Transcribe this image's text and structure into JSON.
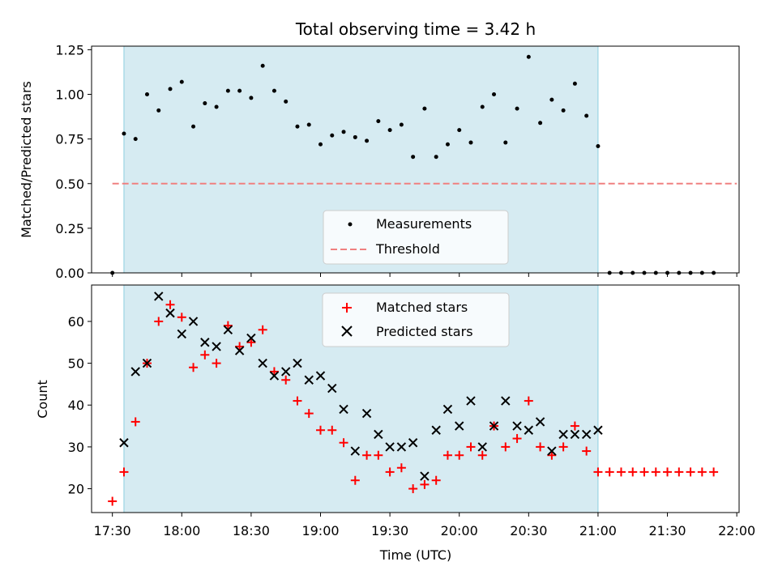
{
  "colors": {
    "shade": "#add8e6",
    "matched": "#ff0000",
    "predicted": "#000000",
    "measurement": "#000000",
    "threshold": "#f08080"
  },
  "chart_data": [
    {
      "type": "scatter",
      "title": "Total observing time = 3.42 h",
      "xlabel": "",
      "ylabel": "Matched/Predicted stars",
      "ylim": [
        0,
        1.27
      ],
      "yticks": [
        "0.00",
        "0.25",
        "0.50",
        "0.75",
        "1.00",
        "1.25"
      ],
      "grid": false,
      "legend": "bottom-center",
      "legend_entries": [
        "Measurements",
        "Threshold"
      ],
      "shaded_interval": [
        "17:35",
        "21:00"
      ],
      "threshold": {
        "value": 0.5,
        "x": [
          "17:30",
          "22:00"
        ]
      },
      "x": [
        "17:30",
        "17:35",
        "17:40",
        "17:45",
        "17:50",
        "17:55",
        "18:00",
        "18:05",
        "18:10",
        "18:15",
        "18:20",
        "18:25",
        "18:30",
        "18:35",
        "18:40",
        "18:45",
        "18:50",
        "18:55",
        "19:00",
        "19:05",
        "19:10",
        "19:15",
        "19:20",
        "19:25",
        "19:30",
        "19:35",
        "19:40",
        "19:45",
        "19:50",
        "19:55",
        "20:00",
        "20:05",
        "20:10",
        "20:15",
        "20:20",
        "20:25",
        "20:30",
        "20:35",
        "20:40",
        "20:45",
        "20:50",
        "20:55",
        "21:00",
        "21:05",
        "21:10",
        "21:15",
        "21:20",
        "21:25",
        "21:30",
        "21:35",
        "21:40",
        "21:45",
        "21:50"
      ],
      "values": [
        0,
        0.78,
        0.75,
        1.0,
        0.91,
        1.03,
        1.07,
        0.82,
        0.95,
        0.93,
        1.02,
        1.02,
        0.98,
        1.16,
        1.02,
        0.96,
        0.82,
        0.83,
        0.72,
        0.77,
        0.79,
        0.76,
        0.74,
        0.85,
        0.8,
        0.83,
        0.65,
        0.92,
        0.65,
        0.72,
        0.8,
        0.73,
        0.93,
        1.0,
        0.73,
        0.92,
        1.21,
        0.84,
        0.97,
        0.91,
        1.06,
        0.88,
        0.71,
        0,
        0,
        0,
        0,
        0,
        0,
        0,
        0,
        0,
        0
      ]
    },
    {
      "type": "scatter",
      "title": "",
      "xlabel": "Time (UTC)",
      "ylabel": "Count",
      "ylim": [
        14.3,
        68.7
      ],
      "yticks": [
        "20",
        "30",
        "40",
        "50",
        "60"
      ],
      "xlim": [
        "17:21",
        "22:01"
      ],
      "xticks": [
        "17:30",
        "18:00",
        "18:30",
        "19:00",
        "19:30",
        "20:00",
        "20:30",
        "21:00",
        "21:30",
        "22:00"
      ],
      "grid": false,
      "legend": "top-center",
      "shaded_interval": [
        "17:35",
        "21:00"
      ],
      "series": [
        {
          "name": "Matched stars",
          "marker": "+",
          "x": [
            "17:30",
            "17:35",
            "17:40",
            "17:45",
            "17:50",
            "17:55",
            "18:00",
            "18:05",
            "18:10",
            "18:15",
            "18:20",
            "18:25",
            "18:30",
            "18:35",
            "18:40",
            "18:45",
            "18:50",
            "18:55",
            "19:00",
            "19:05",
            "19:10",
            "19:15",
            "19:20",
            "19:25",
            "19:30",
            "19:35",
            "19:40",
            "19:45",
            "19:50",
            "19:55",
            "20:00",
            "20:05",
            "20:10",
            "20:15",
            "20:20",
            "20:25",
            "20:30",
            "20:35",
            "20:40",
            "20:45",
            "20:50",
            "20:55",
            "21:00",
            "21:05",
            "21:10",
            "21:15",
            "21:20",
            "21:25",
            "21:30",
            "21:35",
            "21:40",
            "21:45",
            "21:50"
          ],
          "values": [
            17,
            24,
            36,
            50,
            60,
            64,
            61,
            49,
            52,
            50,
            59,
            54,
            55,
            58,
            48,
            46,
            41,
            38,
            34,
            34,
            31,
            22,
            28,
            28,
            24,
            25,
            20,
            21,
            22,
            28,
            28,
            30,
            28,
            35,
            30,
            32,
            41,
            30,
            28,
            30,
            35,
            29,
            24,
            24,
            24,
            24,
            24,
            24,
            24,
            24,
            24,
            24,
            24
          ]
        },
        {
          "name": "Predicted stars",
          "marker": "x",
          "x": [
            "17:35",
            "17:40",
            "17:45",
            "17:50",
            "17:55",
            "18:00",
            "18:05",
            "18:10",
            "18:15",
            "18:20",
            "18:25",
            "18:30",
            "18:35",
            "18:40",
            "18:45",
            "18:50",
            "18:55",
            "19:00",
            "19:05",
            "19:10",
            "19:15",
            "19:20",
            "19:25",
            "19:30",
            "19:35",
            "19:40",
            "19:45",
            "19:50",
            "19:55",
            "20:00",
            "20:05",
            "20:10",
            "20:15",
            "20:20",
            "20:25",
            "20:30",
            "20:35",
            "20:40",
            "20:45",
            "20:50",
            "20:55",
            "21:00"
          ],
          "values": [
            31,
            48,
            50,
            66,
            62,
            57,
            60,
            55,
            54,
            58,
            53,
            56,
            50,
            47,
            48,
            50,
            46,
            47,
            44,
            39,
            29,
            38,
            33,
            30,
            30,
            31,
            23,
            34,
            39,
            35,
            41,
            30,
            35,
            41,
            35,
            34,
            36,
            29,
            33,
            33,
            33,
            34
          ]
        }
      ]
    }
  ]
}
